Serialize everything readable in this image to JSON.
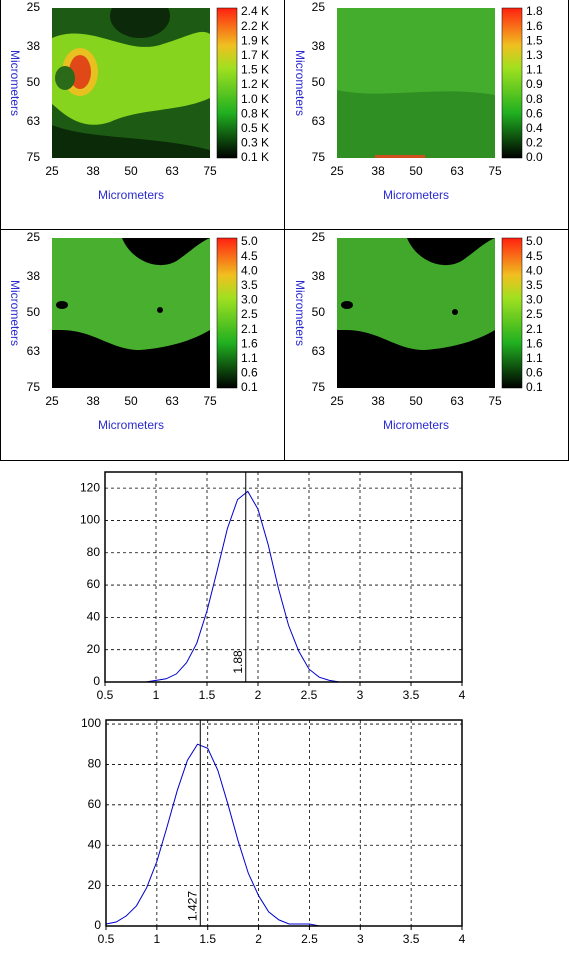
{
  "panels": [
    {
      "xlabel": "Micrometers",
      "ylabel": "Micrometers",
      "xlim": [
        25,
        75
      ],
      "ylim": [
        25,
        75
      ],
      "xticks": [
        25,
        38,
        50,
        63,
        75
      ],
      "yticks": [
        25,
        38,
        50,
        63,
        75
      ],
      "colorbar_labels": [
        "2.4 K",
        "2.2 K",
        "1.9 K",
        "1.7 K",
        "1.5 K",
        "1.2 K",
        "1.0 K",
        "0.8 K",
        "0.5 K",
        "0.3 K",
        "0.1 K"
      ]
    },
    {
      "xlabel": "Micrometers",
      "ylabel": "Micrometers",
      "xlim": [
        25,
        75
      ],
      "ylim": [
        25,
        75
      ],
      "xticks": [
        25,
        38,
        50,
        63,
        75
      ],
      "yticks": [
        25,
        38,
        50,
        63,
        75
      ],
      "colorbar_labels": [
        "1.8",
        "1.6",
        "1.5",
        "1.3",
        "1.1",
        "0.9",
        "0.8",
        "0.6",
        "0.4",
        "0.2",
        "0.0"
      ]
    },
    {
      "xlabel": "Micrometers",
      "ylabel": "Micrometers",
      "xlim": [
        25,
        75
      ],
      "ylim": [
        25,
        75
      ],
      "xticks": [
        25,
        38,
        50,
        63,
        75
      ],
      "yticks": [
        25,
        38,
        50,
        63,
        75
      ],
      "colorbar_labels": [
        "5.0",
        "4.5",
        "4.0",
        "3.5",
        "3.0",
        "2.5",
        "2.1",
        "1.6",
        "1.1",
        "0.6",
        "0.1"
      ]
    },
    {
      "xlabel": "Micrometers",
      "ylabel": "Micrometers",
      "xlim": [
        25,
        75
      ],
      "ylim": [
        25,
        75
      ],
      "xticks": [
        25,
        38,
        50,
        63,
        75
      ],
      "yticks": [
        25,
        38,
        50,
        63,
        75
      ],
      "colorbar_labels": [
        "5.0",
        "4.5",
        "4.0",
        "3.5",
        "3.0",
        "2.5",
        "2.1",
        "1.6",
        "1.1",
        "0.6",
        "0.1"
      ]
    }
  ],
  "chart_data": [
    {
      "type": "line",
      "color": "#0000cc",
      "grid": true,
      "marker": 1.88,
      "x": [
        0.5,
        0.6,
        0.7,
        0.8,
        0.9,
        1.0,
        1.1,
        1.2,
        1.3,
        1.4,
        1.5,
        1.6,
        1.7,
        1.8,
        1.9,
        2.0,
        2.1,
        2.2,
        2.3,
        2.4,
        2.5,
        2.6,
        2.7,
        2.8,
        2.9,
        3.0,
        3.1,
        3.2,
        3.3,
        3.4,
        3.5,
        3.6,
        3.7,
        3.8,
        3.9,
        4.0
      ],
      "values": [
        0,
        0,
        0,
        0,
        0,
        1,
        2,
        5,
        12,
        24,
        44,
        69,
        95,
        113,
        118,
        107,
        85,
        58,
        35,
        19,
        8,
        3,
        1,
        0,
        0,
        0,
        0,
        0,
        0,
        0,
        0,
        0,
        0,
        0,
        0,
        0
      ],
      "xlim": [
        0.5,
        4.0
      ],
      "ylim": [
        0,
        130
      ],
      "xticks": [
        0.5,
        1.0,
        1.5,
        2.0,
        2.5,
        3.0,
        3.5,
        4.0
      ],
      "yticks": [
        0,
        20,
        40,
        60,
        80,
        100,
        120
      ]
    },
    {
      "type": "line",
      "color": "#0000cc",
      "grid": true,
      "marker": 1.427,
      "x": [
        0.5,
        0.6,
        0.7,
        0.8,
        0.9,
        1.0,
        1.1,
        1.2,
        1.3,
        1.4,
        1.5,
        1.6,
        1.7,
        1.8,
        1.9,
        2.0,
        2.1,
        2.2,
        2.3,
        2.4,
        2.5,
        2.6,
        2.7,
        2.8,
        2.9,
        3.0,
        3.1,
        3.2,
        3.3,
        3.4,
        3.5,
        3.6,
        3.7,
        3.8,
        3.9,
        4.0
      ],
      "values": [
        1,
        2,
        5,
        10,
        19,
        32,
        49,
        67,
        82,
        90,
        88,
        77,
        60,
        42,
        26,
        15,
        7,
        3,
        1,
        1,
        1,
        0,
        0,
        0,
        0,
        0,
        0,
        0,
        0,
        0,
        0,
        0,
        0,
        0,
        0,
        0
      ],
      "xlim": [
        0.5,
        4.0
      ],
      "ylim": [
        0,
        102
      ],
      "xticks": [
        0.5,
        1.0,
        1.5,
        2.0,
        2.5,
        3.0,
        3.5,
        4.0
      ],
      "yticks": [
        0,
        20,
        40,
        60,
        80,
        100
      ]
    }
  ]
}
